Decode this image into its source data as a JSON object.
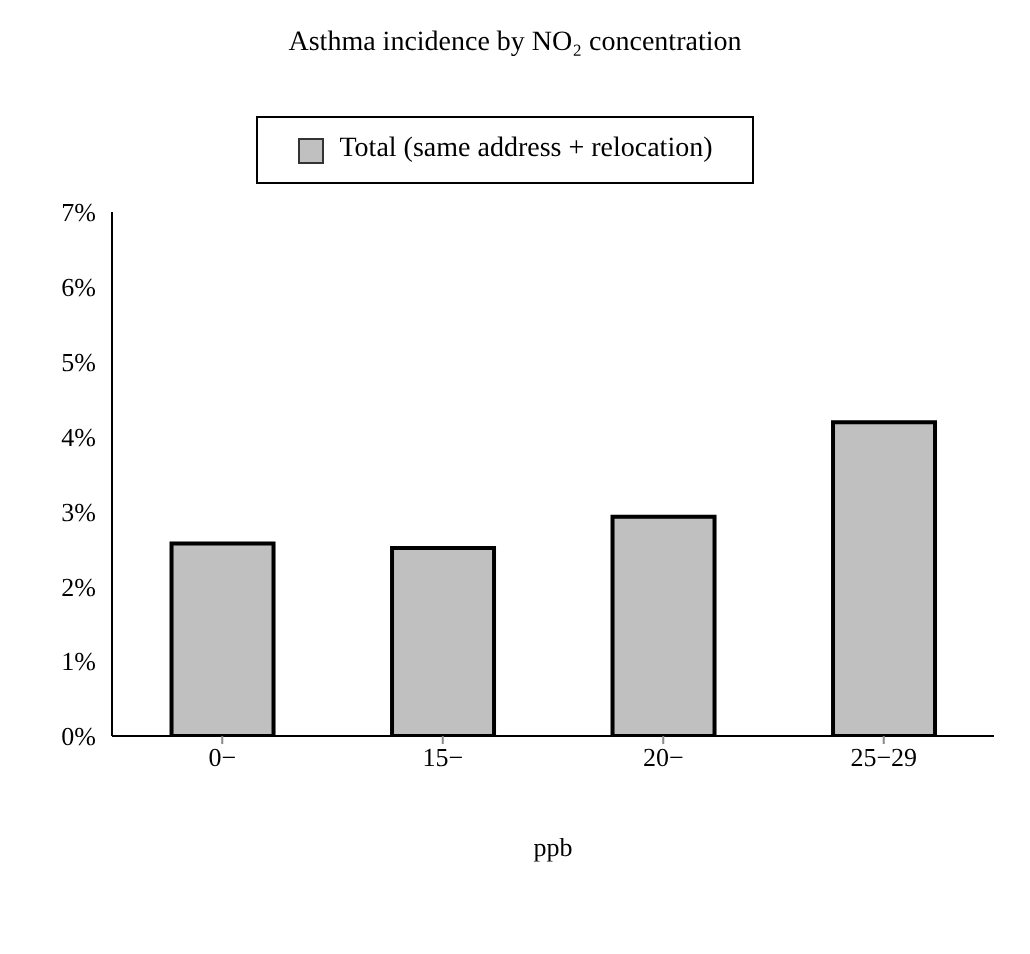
{
  "chart_data": {
    "type": "bar",
    "title": "Asthma incidence by NO₂ concentration",
    "xlabel": "ppb",
    "categories": [
      "0−",
      "15−",
      "20−",
      "25−29"
    ],
    "series": [
      {
        "name": "Total (same address + relocation)",
        "color": "#c0c0c0",
        "values": [
          2.57,
          2.51,
          2.93,
          4.19
        ]
      }
    ],
    "ylim": [
      0,
      7
    ],
    "yticks": [
      {
        "value": 0,
        "label": "0%"
      },
      {
        "value": 1,
        "label": "1%"
      },
      {
        "value": 2,
        "label": "2%"
      },
      {
        "value": 3,
        "label": "3%"
      },
      {
        "value": 4,
        "label": "4%"
      },
      {
        "value": 5,
        "label": "5%"
      },
      {
        "value": 6,
        "label": "6%"
      },
      {
        "value": 7,
        "label": "7%"
      }
    ],
    "grid": false,
    "legend": "top"
  }
}
